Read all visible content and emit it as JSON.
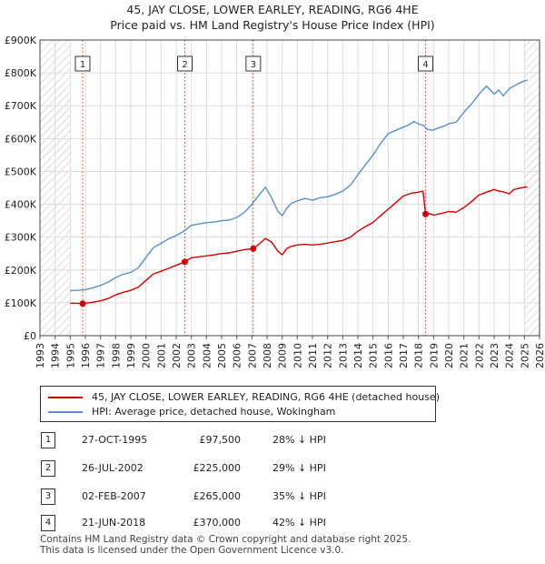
{
  "title": "45, JAY CLOSE, LOWER EARLEY, READING, RG6 4HE",
  "subtitle": "Price paid vs. HM Land Registry's House Price Index (HPI)",
  "legend": {
    "property": "45, JAY CLOSE, LOWER EARLEY, READING, RG6 4HE (detached house)",
    "hpi": "HPI: Average price, detached house, Wokingham"
  },
  "colors": {
    "property": "#cc0000",
    "hpi": "#5b8fc7",
    "hatch": "#bbbbbb",
    "vline": "#e06060",
    "grid": "#dddddd"
  },
  "sales": [
    {
      "num": "1",
      "date": "27-OCT-1995",
      "price": "£97,500",
      "hpi": "28% ↓ HPI"
    },
    {
      "num": "2",
      "date": "26-JUL-2002",
      "price": "£225,000",
      "hpi": "29% ↓ HPI"
    },
    {
      "num": "3",
      "date": "02-FEB-2007",
      "price": "£265,000",
      "hpi": "35% ↓ HPI"
    },
    {
      "num": "4",
      "date": "21-JUN-2018",
      "price": "£370,000",
      "hpi": "42% ↓ HPI"
    }
  ],
  "footer": {
    "line1": "Contains HM Land Registry data © Crown copyright and database right 2025.",
    "line2": "This data is licensed under the Open Government Licence v3.0."
  },
  "chart_data": {
    "type": "line",
    "title": "45, JAY CLOSE, LOWER EARLEY, READING, RG6 4HE",
    "subtitle": "Price paid vs. HM Land Registry's House Price Index (HPI)",
    "xlabel": "",
    "ylabel": "",
    "xlim": [
      1993,
      2026
    ],
    "ylim": [
      0,
      900000
    ],
    "x_ticks": [
      1993,
      1994,
      1995,
      1996,
      1997,
      1998,
      1999,
      2000,
      2001,
      2002,
      2003,
      2004,
      2005,
      2006,
      2007,
      2008,
      2009,
      2010,
      2011,
      2012,
      2013,
      2014,
      2015,
      2016,
      2017,
      2018,
      2019,
      2020,
      2021,
      2022,
      2023,
      2024,
      2025,
      2026
    ],
    "y_ticks": [
      0,
      100000,
      200000,
      300000,
      400000,
      500000,
      600000,
      700000,
      800000,
      900000
    ],
    "y_tick_labels": [
      "£0",
      "£100K",
      "£200K",
      "£300K",
      "£400K",
      "£500K",
      "£600K",
      "£700K",
      "£800K",
      "£900K"
    ],
    "hatched_ranges": [
      [
        1993,
        1995.0
      ],
      [
        2025.0,
        2026
      ]
    ],
    "series": [
      {
        "name": "45, JAY CLOSE, LOWER EARLEY, READING, RG6 4HE (detached house)",
        "x": [
          1995.0,
          1995.5,
          1995.82,
          1996.5,
          1997.0,
          1997.5,
          1998.0,
          1998.5,
          1999.0,
          1999.5,
          2000.0,
          2000.5,
          2001.0,
          2001.5,
          2002.0,
          2002.57,
          2003.0,
          2003.5,
          2004.0,
          2004.5,
          2005.0,
          2005.5,
          2006.0,
          2006.5,
          2007.09,
          2007.5,
          2007.9,
          2008.3,
          2008.7,
          2009.0,
          2009.3,
          2009.6,
          2010.0,
          2010.5,
          2011.0,
          2011.5,
          2012.0,
          2012.5,
          2013.0,
          2013.5,
          2014.0,
          2014.5,
          2015.0,
          2015.5,
          2016.0,
          2016.5,
          2017.0,
          2017.5,
          2018.0,
          2018.3,
          2018.47,
          2018.7,
          2019.0,
          2019.5,
          2020.0,
          2020.5,
          2021.0,
          2021.5,
          2022.0,
          2022.5,
          2023.0,
          2023.3,
          2023.6,
          2024.0,
          2024.3,
          2024.6,
          2025.0,
          2025.2
        ],
        "values": [
          99000,
          98500,
          97500,
          102000,
          106000,
          113000,
          124000,
          132000,
          138000,
          148000,
          168000,
          188000,
          196000,
          205000,
          214000,
          225000,
          237000,
          240000,
          243000,
          246000,
          250000,
          252000,
          257000,
          262000,
          265000,
          280000,
          296000,
          285000,
          258000,
          246000,
          265000,
          272000,
          276000,
          278000,
          276000,
          278000,
          282000,
          286000,
          290000,
          300000,
          318000,
          332000,
          345000,
          365000,
          385000,
          405000,
          425000,
          433000,
          437000,
          440000,
          370000,
          372000,
          367000,
          372000,
          378000,
          376000,
          390000,
          408000,
          428000,
          437000,
          445000,
          440000,
          438000,
          432000,
          445000,
          448000,
          452000,
          453000
        ]
      },
      {
        "name": "HPI: Average price, detached house, Wokingham",
        "x": [
          1995.0,
          1995.5,
          1996.0,
          1996.5,
          1997.0,
          1997.5,
          1998.0,
          1998.5,
          1999.0,
          1999.5,
          2000.0,
          2000.5,
          2001.0,
          2001.5,
          2002.0,
          2002.5,
          2003.0,
          2003.5,
          2004.0,
          2004.5,
          2005.0,
          2005.5,
          2006.0,
          2006.5,
          2007.0,
          2007.5,
          2007.9,
          2008.3,
          2008.7,
          2009.0,
          2009.3,
          2009.6,
          2010.0,
          2010.5,
          2011.0,
          2011.5,
          2012.0,
          2012.5,
          2013.0,
          2013.5,
          2014.0,
          2014.5,
          2015.0,
          2015.5,
          2016.0,
          2016.5,
          2017.0,
          2017.3,
          2017.7,
          2018.0,
          2018.3,
          2018.6,
          2018.9,
          2019.3,
          2019.7,
          2020.0,
          2020.5,
          2021.0,
          2021.5,
          2022.0,
          2022.5,
          2023.0,
          2023.3,
          2023.6,
          2024.0,
          2024.5,
          2025.0,
          2025.2
        ],
        "values": [
          137000,
          138000,
          140000,
          146000,
          153000,
          163000,
          177000,
          187000,
          193000,
          207000,
          238000,
          268000,
          281000,
          295000,
          305000,
          318000,
          336000,
          340000,
          344000,
          346000,
          350000,
          352000,
          360000,
          375000,
          400000,
          430000,
          452000,
          420000,
          380000,
          365000,
          388000,
          403000,
          410000,
          418000,
          412000,
          420000,
          423000,
          430000,
          440000,
          458000,
          490000,
          520000,
          550000,
          585000,
          615000,
          625000,
          635000,
          640000,
          652000,
          645000,
          640000,
          628000,
          625000,
          632000,
          638000,
          645000,
          650000,
          680000,
          705000,
          735000,
          760000,
          735000,
          748000,
          730000,
          752000,
          765000,
          776000,
          778000
        ]
      }
    ],
    "annotations": [
      {
        "label": "1",
        "x": 1995.82,
        "value": 97500
      },
      {
        "label": "2",
        "x": 2002.57,
        "value": 225000
      },
      {
        "label": "3",
        "x": 2007.09,
        "value": 265000
      },
      {
        "label": "4",
        "x": 2018.47,
        "value": 370000
      }
    ]
  }
}
